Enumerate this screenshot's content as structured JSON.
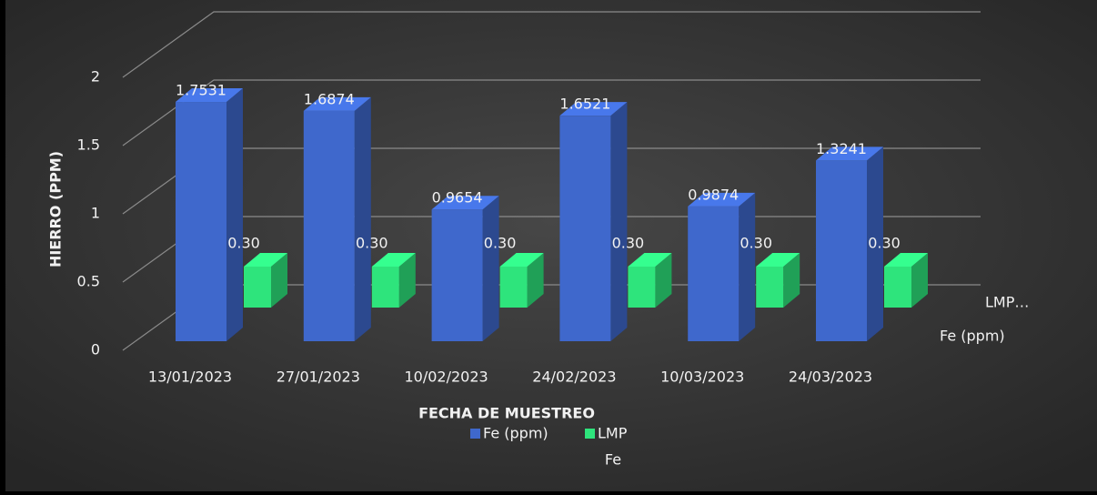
{
  "chart_data": {
    "type": "bar3d",
    "y_axis_label": "HIERRO (PPM)",
    "x_axis_label": "FECHA DE MUESTREO",
    "categories": [
      "13/01/2023",
      "27/01/2023",
      "10/02/2023",
      "24/02/2023",
      "10/03/2023",
      "24/03/2023"
    ],
    "series": [
      {
        "name": "Fe (ppm)",
        "color": "#3f68cc",
        "values": [
          1.7531,
          1.6874,
          0.9654,
          1.6521,
          0.9874,
          1.3241
        ]
      },
      {
        "name": "LMP",
        "color": "#2ee47c",
        "values": [
          0.3,
          0.3,
          0.3,
          0.3,
          0.3,
          0.3
        ],
        "value_labels": [
          "0.30",
          "0.30",
          "0.30",
          "0.30",
          "0.30",
          "0.30"
        ]
      }
    ],
    "depth_axis_labels": [
      "LMP…",
      "Fe (ppm)"
    ],
    "legend_note": "Fe",
    "ylim": [
      0,
      2
    ],
    "yticks": [
      0,
      0.5,
      1,
      1.5,
      2
    ],
    "grid": true,
    "legend": "bottom"
  }
}
